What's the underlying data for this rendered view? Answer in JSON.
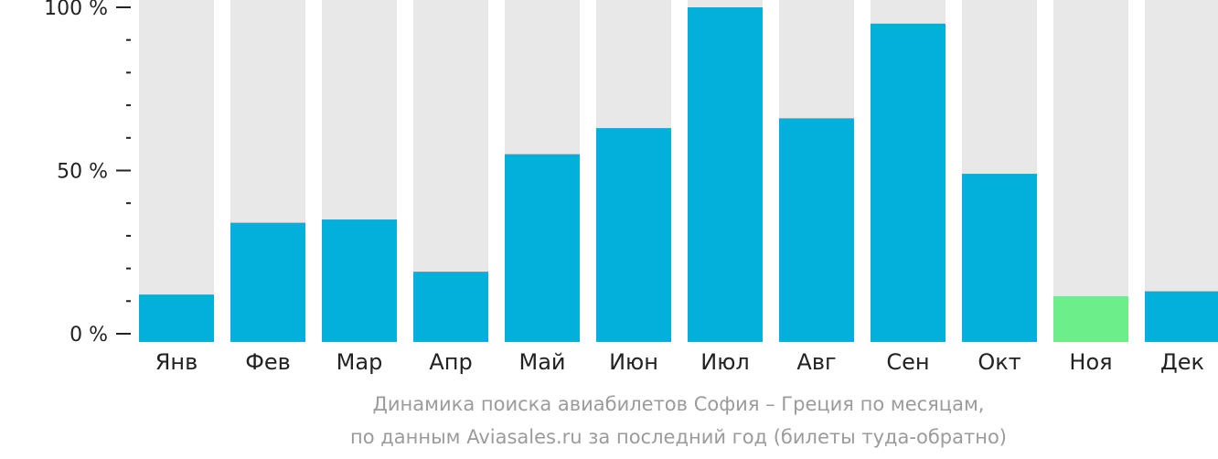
{
  "chart_data": {
    "type": "bar",
    "categories": [
      "Янв",
      "Фев",
      "Мар",
      "Апр",
      "Май",
      "Июн",
      "Июл",
      "Авг",
      "Сен",
      "Окт",
      "Ноя",
      "Дек"
    ],
    "values": [
      12,
      34,
      35,
      19,
      55,
      63,
      100,
      66,
      95,
      49,
      11.5,
      13
    ],
    "ylim": [
      0,
      100
    ],
    "yticks": [
      {
        "value": 100,
        "label": "100 %"
      },
      {
        "value": 50,
        "label": "50 %"
      },
      {
        "value": 0,
        "label": "0 %"
      }
    ],
    "minor_tick_step": 10,
    "highlight_index": 10,
    "title": "",
    "xlabel": "",
    "ylabel": "",
    "grid": false,
    "colors": {
      "bar": "#03b0dc",
      "highlight": "#6cef8a",
      "background_bar": "#e8e8e8",
      "axis": "#222222"
    }
  },
  "caption": {
    "line1": "Динамика поиска авиабилетов София – Греция по месяцам,",
    "line2": "по данным Aviasales.ru за последний год (билеты туда-обратно)"
  }
}
